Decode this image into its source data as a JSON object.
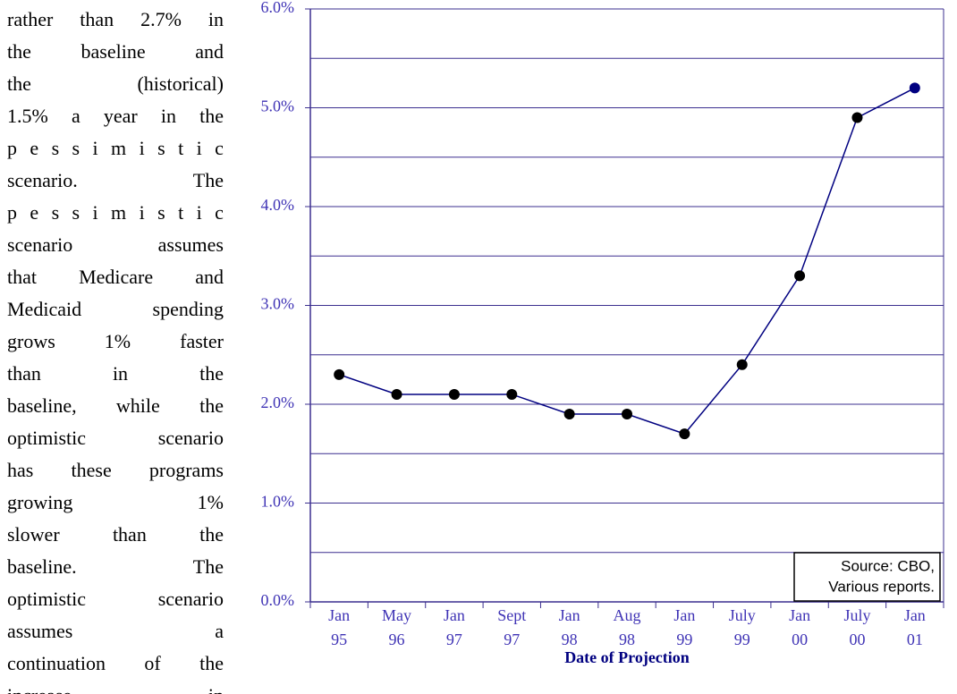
{
  "text_lines": [
    "rather than 2.7% in",
    "the baseline and",
    "the (historical)",
    "1.5% a year in the",
    "pessimistic",
    "scenario. The",
    "pessimistic",
    "scenario assumes",
    "that Medicare and",
    "Medicaid spending",
    "grows 1% faster",
    "than in the",
    "baseline, while the",
    "optimistic scenario",
    "has these programs",
    "growing 1%",
    "slower than the",
    "baseline. The",
    "optimistic scenario",
    "assumes a",
    "continuation of the",
    "increase in"
  ],
  "chart_data": {
    "type": "line",
    "x_label": "Date of Projection",
    "categories": [
      "Jan 95",
      "May 96",
      "Jan 97",
      "Sept 97",
      "Jan 98",
      "Aug 98",
      "Jan 99",
      "July 99",
      "Jan 00",
      "July 00",
      "Jan 01"
    ],
    "values": [
      2.3,
      2.1,
      2.1,
      2.1,
      1.9,
      1.9,
      1.7,
      2.4,
      3.3,
      4.9,
      5.2
    ],
    "color": "#000080",
    "marker_color": "#000000",
    "ylim": [
      0,
      6
    ],
    "yticks": [
      {
        "value": 0,
        "label": "0.0%"
      },
      {
        "value": 1,
        "label": "1.0%"
      },
      {
        "value": 2,
        "label": "2.0%"
      },
      {
        "value": 3,
        "label": "3.0%"
      },
      {
        "value": 4,
        "label": "4.0%"
      },
      {
        "value": 5,
        "label": "5.0%"
      },
      {
        "value": 6,
        "label": "6.0%"
      }
    ],
    "yminor": [
      0.5,
      1.5,
      2.5,
      3.5,
      4.5,
      5.5
    ],
    "grid": true,
    "annotation": [
      "Source: CBO,",
      "Various reports."
    ]
  }
}
